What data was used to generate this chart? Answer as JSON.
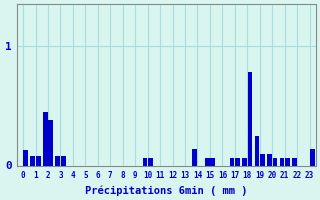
{
  "xlabel": "Précipitations 6min ( mm )",
  "background_color": "#d8f5f0",
  "bar_color": "#0000cc",
  "grid_color": "#aadddd",
  "axis_color": "#888888",
  "text_color": "#0000cc",
  "ylim": [
    0,
    1.35
  ],
  "xlim": [
    -0.5,
    23.5
  ],
  "values": [
    0,
    0.13,
    0.08,
    0.08,
    0.45,
    0.38,
    0.08,
    0.08,
    0,
    0,
    0,
    0,
    0,
    0,
    0,
    0,
    0,
    0,
    0,
    0,
    0.07,
    0.07,
    0,
    0,
    0,
    0,
    0,
    0,
    0.14,
    0,
    0.07,
    0.07,
    0,
    0,
    0.07,
    0.07,
    0.07,
    0.78,
    0.25,
    0.1,
    0.1,
    0.07,
    0.07,
    0.07,
    0.07,
    0,
    0,
    0.14
  ]
}
